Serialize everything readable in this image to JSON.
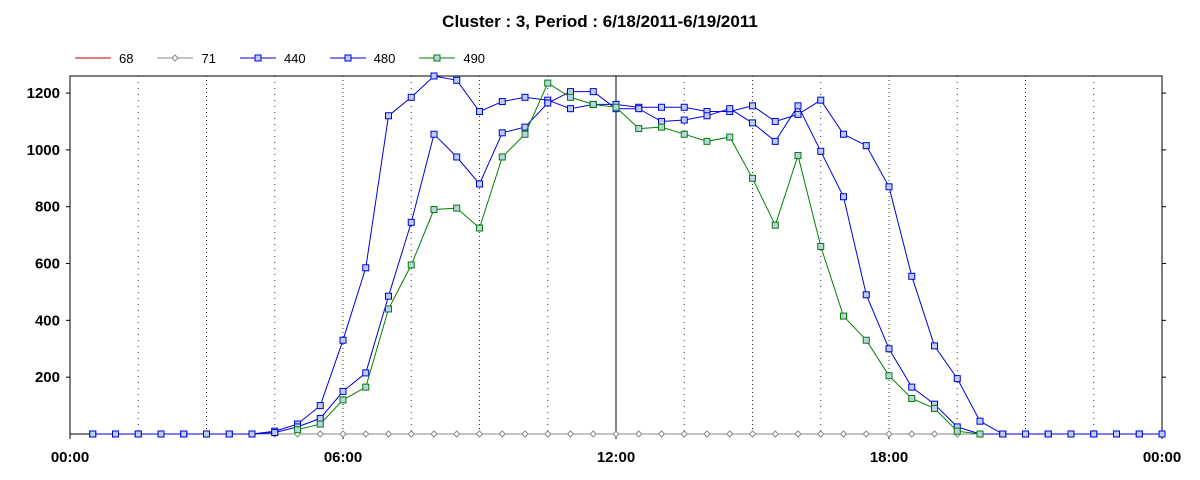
{
  "chart_data": {
    "type": "line",
    "title": "Cluster : 3, Period : 6/18/2011-6/19/2011",
    "xlabel": "",
    "ylabel": "",
    "x_ticks": [
      "00:00",
      "06:00",
      "12:00",
      "18:00",
      "00:00"
    ],
    "y_ticks": [
      "200",
      "400",
      "600",
      "800",
      "1000",
      "1200"
    ],
    "xlim_hours": [
      0,
      24
    ],
    "ylim": [
      0,
      1260
    ],
    "grid": "vertical dotted every 1.5 hours, solid grid at 12:00",
    "legend_placement": "top-left",
    "series": [
      {
        "name": "68",
        "color": "#c00000",
        "marker": "none",
        "points": []
      },
      {
        "name": "71",
        "color": "#888888",
        "marker": "diamond",
        "points": [
          [
            0.5,
            0
          ],
          [
            1,
            0
          ],
          [
            1.5,
            0
          ],
          [
            2,
            0
          ],
          [
            2.5,
            0
          ],
          [
            3,
            0
          ],
          [
            3.5,
            0
          ],
          [
            4,
            0
          ],
          [
            4.5,
            0
          ],
          [
            5,
            0
          ],
          [
            5.5,
            0
          ],
          [
            6,
            0
          ],
          [
            6.5,
            0
          ],
          [
            7,
            0
          ],
          [
            7.5,
            0
          ],
          [
            8,
            0
          ],
          [
            8.5,
            0
          ],
          [
            9,
            0
          ],
          [
            9.5,
            0
          ],
          [
            10,
            0
          ],
          [
            10.5,
            0
          ],
          [
            11,
            0
          ],
          [
            11.5,
            0
          ],
          [
            12,
            0
          ],
          [
            12.5,
            0
          ],
          [
            13,
            0
          ],
          [
            13.5,
            0
          ],
          [
            14,
            0
          ],
          [
            14.5,
            0
          ],
          [
            15,
            0
          ],
          [
            15.5,
            0
          ],
          [
            16,
            0
          ],
          [
            16.5,
            0
          ],
          [
            17,
            0
          ],
          [
            17.5,
            0
          ],
          [
            18,
            0
          ],
          [
            18.5,
            0
          ],
          [
            19,
            0
          ],
          [
            19.5,
            0
          ],
          [
            20,
            0
          ],
          [
            20.5,
            0
          ],
          [
            21,
            0
          ],
          [
            21.5,
            0
          ],
          [
            22,
            0
          ],
          [
            22.5,
            0
          ],
          [
            23,
            0
          ],
          [
            23.5,
            0
          ],
          [
            24,
            0
          ]
        ]
      },
      {
        "name": "440",
        "color": "#0000dd",
        "marker": "square",
        "points": [
          [
            0.5,
            0
          ],
          [
            1,
            0
          ],
          [
            1.5,
            0
          ],
          [
            2,
            0
          ],
          [
            2.5,
            0
          ],
          [
            3,
            0
          ],
          [
            3.5,
            0
          ],
          [
            4,
            0
          ],
          [
            4.5,
            10
          ],
          [
            5,
            35
          ],
          [
            5.5,
            100
          ],
          [
            6,
            330
          ],
          [
            6.5,
            585
          ],
          [
            7,
            1120
          ],
          [
            7.5,
            1185
          ],
          [
            8,
            1260
          ],
          [
            8.5,
            1245
          ],
          [
            9,
            1135
          ],
          [
            9.5,
            1170
          ],
          [
            10,
            1185
          ],
          [
            10.5,
            1175
          ],
          [
            11,
            1145
          ],
          [
            11.5,
            1160
          ],
          [
            12,
            1160
          ],
          [
            12.5,
            1150
          ],
          [
            13,
            1150
          ],
          [
            13.5,
            1150
          ],
          [
            14,
            1135
          ],
          [
            14.5,
            1135
          ],
          [
            15,
            1155
          ],
          [
            15.5,
            1100
          ],
          [
            16,
            1125
          ],
          [
            16.5,
            1175
          ],
          [
            17,
            1055
          ],
          [
            17.5,
            1015
          ],
          [
            18,
            870
          ],
          [
            18.5,
            555
          ],
          [
            19,
            310
          ],
          [
            19.5,
            195
          ],
          [
            20,
            45
          ],
          [
            20.5,
            0
          ],
          [
            21,
            0
          ],
          [
            21.5,
            0
          ],
          [
            22,
            0
          ],
          [
            22.5,
            0
          ],
          [
            23,
            0
          ],
          [
            23.5,
            0
          ],
          [
            24,
            0
          ]
        ]
      },
      {
        "name": "480",
        "color": "#0000dd",
        "marker": "square",
        "points": [
          [
            0.5,
            0
          ],
          [
            1,
            0
          ],
          [
            1.5,
            0
          ],
          [
            2,
            0
          ],
          [
            2.5,
            0
          ],
          [
            3,
            0
          ],
          [
            3.5,
            0
          ],
          [
            4,
            0
          ],
          [
            4.5,
            5
          ],
          [
            5,
            25
          ],
          [
            5.5,
            55
          ],
          [
            6,
            150
          ],
          [
            6.5,
            215
          ],
          [
            7,
            485
          ],
          [
            7.5,
            745
          ],
          [
            8,
            1055
          ],
          [
            8.5,
            975
          ],
          [
            9,
            880
          ],
          [
            9.5,
            1060
          ],
          [
            10,
            1080
          ],
          [
            10.5,
            1165
          ],
          [
            11,
            1205
          ],
          [
            11.5,
            1205
          ],
          [
            12,
            1145
          ],
          [
            12.5,
            1145
          ],
          [
            13,
            1100
          ],
          [
            13.5,
            1105
          ],
          [
            14,
            1120
          ],
          [
            14.5,
            1145
          ],
          [
            15,
            1095
          ],
          [
            15.5,
            1030
          ],
          [
            16,
            1155
          ],
          [
            16.5,
            995
          ],
          [
            17,
            835
          ],
          [
            17.5,
            490
          ],
          [
            18,
            300
          ],
          [
            18.5,
            165
          ],
          [
            19,
            105
          ],
          [
            19.5,
            25
          ],
          [
            20,
            0
          ],
          [
            20.5,
            0
          ],
          [
            21,
            0
          ],
          [
            21.5,
            0
          ],
          [
            22,
            0
          ],
          [
            22.5,
            0
          ],
          [
            23,
            0
          ],
          [
            23.5,
            0
          ],
          [
            24,
            0
          ]
        ]
      },
      {
        "name": "490",
        "color": "#008000",
        "marker": "square",
        "points": [
          [
            5,
            15
          ],
          [
            5.5,
            35
          ],
          [
            6,
            120
          ],
          [
            6.5,
            165
          ],
          [
            7,
            440
          ],
          [
            7.5,
            595
          ],
          [
            8,
            790
          ],
          [
            8.5,
            795
          ],
          [
            9,
            725
          ],
          [
            9.5,
            975
          ],
          [
            10,
            1055
          ],
          [
            10.5,
            1235
          ],
          [
            11,
            1185
          ],
          [
            11.5,
            1160
          ],
          [
            12,
            1150
          ],
          [
            12.5,
            1075
          ],
          [
            13,
            1080
          ],
          [
            13.5,
            1055
          ],
          [
            14,
            1030
          ],
          [
            14.5,
            1045
          ],
          [
            15,
            900
          ],
          [
            15.5,
            735
          ],
          [
            16,
            980
          ],
          [
            16.5,
            660
          ],
          [
            17,
            415
          ],
          [
            17.5,
            330
          ],
          [
            18,
            205
          ],
          [
            18.5,
            125
          ],
          [
            19,
            90
          ],
          [
            19.5,
            10
          ],
          [
            20,
            0
          ]
        ]
      }
    ]
  }
}
